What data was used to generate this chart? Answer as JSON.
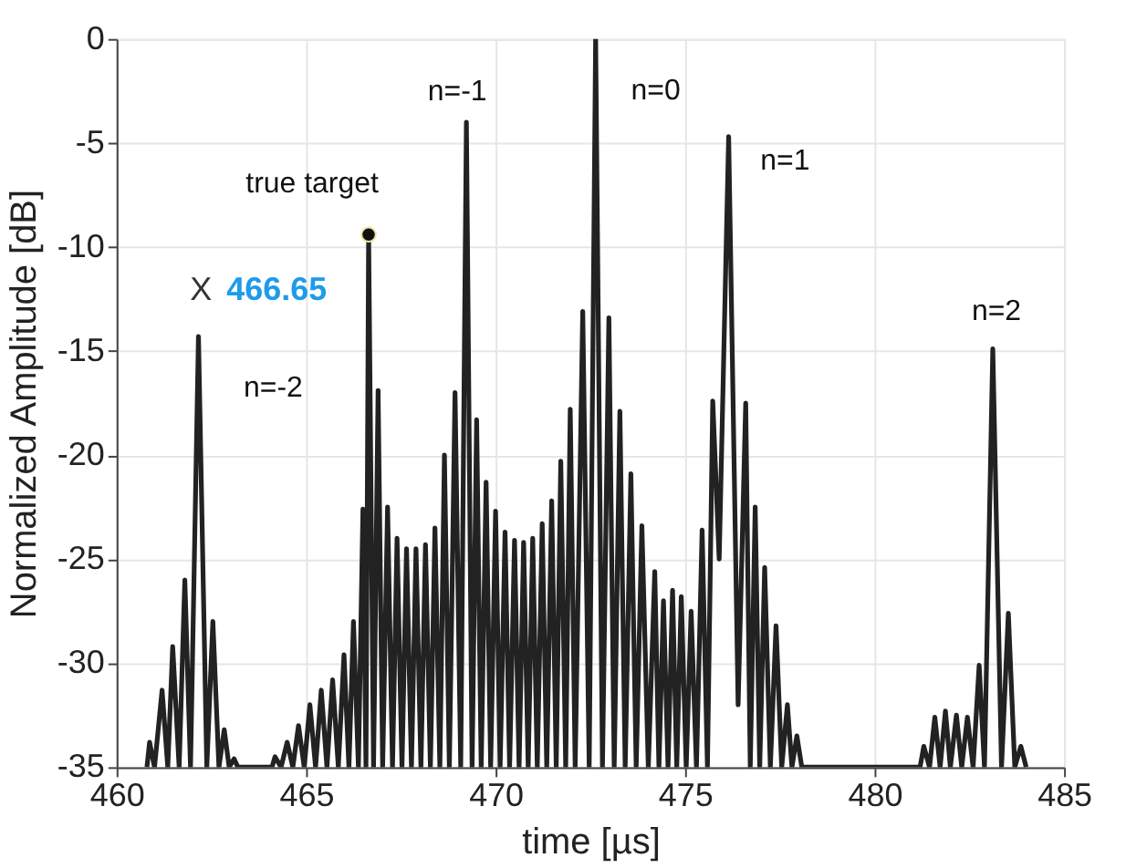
{
  "chart_data": {
    "type": "line",
    "xlabel": "time [µs]",
    "ylabel": "Normalized Amplitude [dB]",
    "xlim": [
      460,
      485
    ],
    "xticks": [
      460,
      465,
      470,
      475,
      480,
      485
    ],
    "ylim": [
      -35,
      0
    ],
    "yticks": [
      -35,
      -30,
      -25,
      -20,
      -15,
      -10,
      -5,
      0
    ],
    "grid": true,
    "line_style": "solid",
    "series": [
      {
        "color": "#222222",
        "x": [
          460.8,
          460.87,
          461.0,
          461.2,
          461.35,
          461.48,
          461.65,
          461.8,
          461.95,
          462.16,
          462.38,
          462.54,
          462.7,
          462.84,
          462.97,
          463.1,
          463.2,
          464.1,
          464.18,
          464.34,
          464.5,
          464.65,
          464.8,
          464.95,
          465.1,
          465.25,
          465.4,
          465.55,
          465.7,
          465.85,
          466.0,
          466.13,
          466.25,
          466.38,
          466.5,
          466.58,
          466.65,
          466.78,
          466.9,
          467.02,
          467.15,
          467.28,
          467.4,
          467.53,
          467.65,
          467.78,
          467.9,
          468.03,
          468.15,
          468.28,
          468.4,
          468.53,
          468.65,
          468.78,
          468.93,
          469.08,
          469.23,
          469.38,
          469.5,
          469.62,
          469.75,
          469.87,
          470.0,
          470.12,
          470.25,
          470.37,
          470.5,
          470.62,
          470.74,
          470.86,
          470.98,
          471.1,
          471.23,
          471.35,
          471.48,
          471.6,
          471.72,
          471.85,
          471.97,
          472.1,
          472.3,
          472.47,
          472.64,
          472.82,
          472.99,
          473.13,
          473.28,
          473.42,
          473.57,
          473.71,
          473.86,
          474.03,
          474.2,
          474.31,
          474.43,
          474.55,
          474.67,
          474.78,
          474.9,
          475.03,
          475.16,
          475.3,
          475.45,
          475.59,
          475.73,
          475.9,
          476.15,
          476.4,
          476.6,
          476.72,
          476.85,
          476.97,
          477.1,
          477.25,
          477.4,
          477.55,
          477.7,
          477.82,
          477.95,
          478.08,
          478.2,
          481.2,
          481.3,
          481.45,
          481.59,
          481.73,
          481.87,
          482.0,
          482.16,
          482.3,
          482.45,
          482.6,
          482.76,
          482.9,
          483.12,
          483.35,
          483.53,
          483.7,
          483.86,
          484.0
        ],
        "values": [
          -35,
          -33.8,
          -35,
          -31.3,
          -35,
          -29.2,
          -35,
          -26,
          -35,
          -14.3,
          -35,
          -28,
          -35,
          -33.2,
          -35,
          -34.6,
          -35,
          -35,
          -34.5,
          -35,
          -33.8,
          -35,
          -33,
          -35,
          -32,
          -35,
          -31.3,
          -35,
          -30.8,
          -35,
          -29.6,
          -35,
          -28,
          -35,
          -22.6,
          -35,
          -9.4,
          -35,
          -16.9,
          -35,
          -22.5,
          -35,
          -24,
          -35,
          -24.5,
          -35,
          -24.5,
          -35,
          -24.3,
          -35,
          -23.5,
          -35,
          -20,
          -35,
          -17,
          -35,
          -4.0,
          -35,
          -18.3,
          -35,
          -21.3,
          -35,
          -22.7,
          -35,
          -23.7,
          -35,
          -24.1,
          -35,
          -24.2,
          -35,
          -24.0,
          -35,
          -23.3,
          -35,
          -22.2,
          -35,
          -20.3,
          -35,
          -17.8,
          -35,
          -13.1,
          -35,
          0,
          -35,
          -13.4,
          -35,
          -17.9,
          -35,
          -20.9,
          -35,
          -23.4,
          -35,
          -25.6,
          -35,
          -27,
          -35,
          -26.5,
          -35,
          -26.8,
          -35,
          -27.5,
          -35,
          -23.6,
          -35,
          -17.4,
          -25,
          -4.7,
          -32,
          -17.5,
          -35,
          -22.5,
          -35,
          -25.4,
          -35,
          -28.2,
          -35,
          -32,
          -35,
          -33.5,
          -35,
          -35,
          -35,
          -34,
          -35,
          -32.6,
          -35,
          -32.3,
          -35,
          -32.5,
          -35,
          -32.6,
          -35,
          -30.1,
          -35,
          -14.9,
          -35,
          -27.6,
          -35,
          -34,
          -35
        ]
      },
      {
        "type": "scatter",
        "color": "#111111",
        "x": [
          466.65
        ],
        "values": [
          -9.4
        ]
      }
    ],
    "annotations": [
      {
        "text": "true target",
        "x": 466.65,
        "y": -9.4
      },
      {
        "text": "X 466.65",
        "x": 466.65,
        "y": -9.4
      },
      {
        "text": "n=-2",
        "x": 462.16,
        "y": -14.3
      },
      {
        "text": "n=-1",
        "x": 469.23,
        "y": -4.0
      },
      {
        "text": "n=0",
        "x": 472.64,
        "y": 0
      },
      {
        "text": "n=1",
        "x": 476.15,
        "y": -4.7
      },
      {
        "text": "n=2",
        "x": 483.12,
        "y": -14.9
      }
    ]
  }
}
